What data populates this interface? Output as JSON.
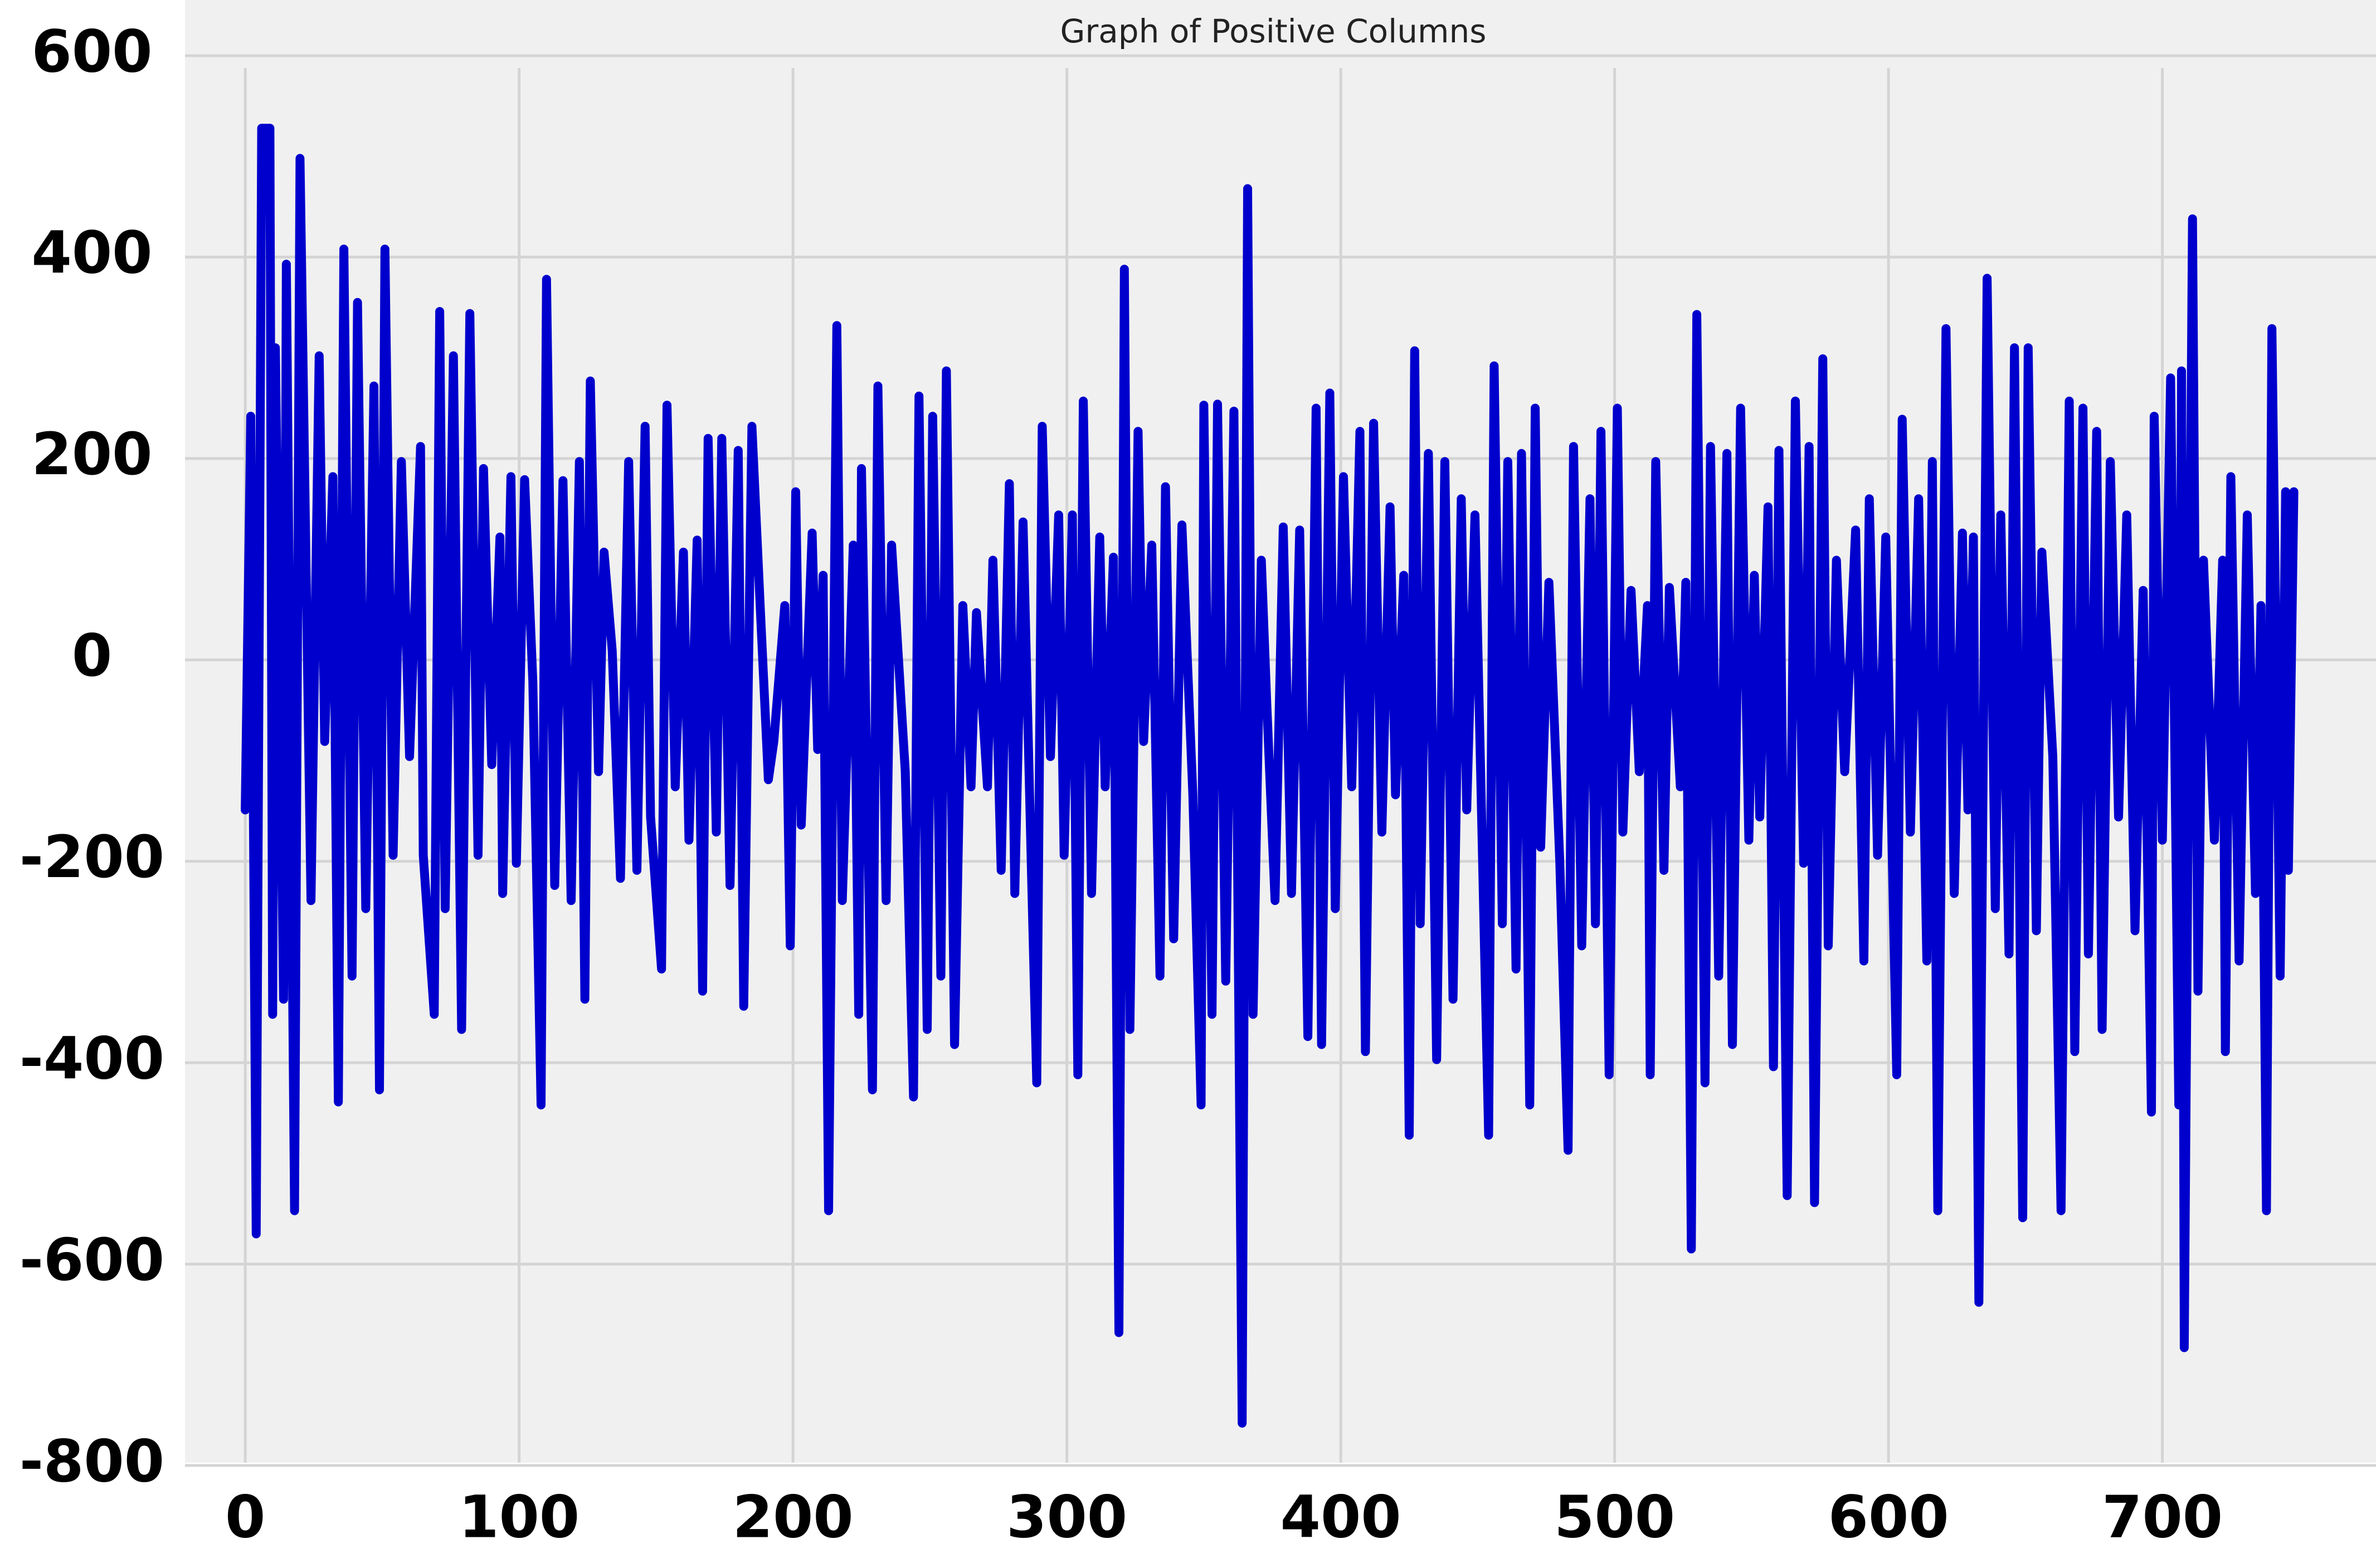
{
  "chart_data": {
    "type": "line",
    "title": "Graph of Positive Columns",
    "x": [
      0,
      2,
      4,
      6,
      9,
      10,
      11,
      14,
      15,
      18,
      20,
      24,
      27,
      29,
      32,
      34,
      36,
      39,
      41,
      44,
      47,
      49,
      51,
      54,
      57,
      60,
      64,
      65,
      69,
      71,
      73,
      76,
      79,
      82,
      85,
      87,
      90,
      93,
      94,
      97,
      99,
      102,
      105,
      108,
      110,
      113,
      116,
      119,
      122,
      124,
      126,
      129,
      131,
      134,
      137,
      140,
      143,
      146,
      148,
      152,
      154,
      157,
      160,
      162,
      165,
      167,
      169,
      172,
      174,
      177,
      180,
      182,
      185,
      188,
      191,
      193,
      197,
      199,
      201,
      203,
      207,
      209,
      211,
      213,
      216,
      218,
      222,
      224,
      225,
      229,
      231,
      234,
      236,
      241,
      244,
      246,
      249,
      251,
      254,
      256,
      259,
      262,
      265,
      267,
      271,
      273,
      276,
      279,
      281,
      284,
      287,
      289,
      291,
      294,
      297,
      299,
      302,
      304,
      306,
      309,
      312,
      314,
      317,
      319,
      321,
      323,
      326,
      328,
      331,
      334,
      336,
      339,
      342,
      346,
      349,
      350,
      353,
      355,
      358,
      361,
      364,
      366,
      368,
      371,
      373,
      376,
      379,
      382,
      385,
      388,
      391,
      393,
      396,
      398,
      401,
      404,
      407,
      409,
      412,
      415,
      418,
      420,
      423,
      425,
      427,
      429,
      432,
      435,
      438,
      441,
      444,
      446,
      449,
      454,
      456,
      459,
      461,
      464,
      466,
      469,
      471,
      473,
      476,
      480,
      483,
      485,
      488,
      491,
      493,
      495,
      498,
      501,
      503,
      506,
      509,
      512,
      513,
      515,
      518,
      520,
      524,
      526,
      528,
      530,
      533,
      535,
      538,
      541,
      543,
      546,
      549,
      551,
      553,
      556,
      558,
      560,
      563,
      566,
      569,
      571,
      573,
      576,
      578,
      581,
      584,
      588,
      591,
      593,
      596,
      599,
      603,
      605,
      608,
      611,
      614,
      616,
      618,
      621,
      624,
      627,
      629,
      631,
      633,
      636,
      639,
      641,
      644,
      646,
      649,
      651,
      654,
      656,
      660,
      663,
      666,
      668,
      671,
      673,
      676,
      678,
      681,
      684,
      687,
      690,
      693,
      696,
      697,
      700,
      703,
      706,
      707,
      708,
      711,
      713,
      715,
      719,
      722,
      723,
      725,
      728,
      731,
      734,
      736,
      738,
      740,
      743,
      745,
      746,
      748
    ],
    "series": [
      {
        "name": "Positive Columns",
        "color": "#0000cd",
        "values": [
          -149,
          242,
          -570,
          528,
          528,
          -352,
          310,
          -337,
          393,
          -547,
          498,
          -239,
          302,
          -81,
          182,
          -439,
          408,
          -314,
          355,
          -247,
          272,
          -427,
          408,
          -194,
          197,
          -96,
          212,
          -194,
          -352,
          346,
          -247,
          302,
          -367,
          344,
          -194,
          190,
          -104,
          122,
          -232,
          182,
          -202,
          179,
          -21,
          -442,
          378,
          -224,
          178,
          -239,
          197,
          -337,
          277,
          -111,
          107,
          9,
          -217,
          197,
          -209,
          232,
          -156,
          -307,
          253,
          -126,
          107,
          -179,
          119,
          -329,
          220,
          -171,
          220,
          -224,
          208,
          -344,
          232,
          54,
          -119,
          -81,
          54,
          -284,
          167,
          -164,
          126,
          -89,
          84,
          -547,
          332,
          -239,
          114,
          -352,
          190,
          -427,
          272,
          -239,
          114,
          -111,
          -434,
          262,
          -367,
          242,
          -314,
          287,
          -382,
          54,
          -126,
          47,
          -126,
          99,
          -209,
          175,
          -232,
          137,
          -202,
          -420,
          232,
          -96,
          144,
          -194,
          144,
          -412,
          257,
          -232,
          122,
          -126,
          102,
          -668,
          388,
          -367,
          227,
          -81,
          114,
          -314,
          172,
          -277,
          134,
          -134,
          -442,
          253,
          -352,
          254,
          -319,
          247,
          -758,
          468,
          -352,
          99,
          -44,
          -239,
          132,
          -232,
          129,
          -374,
          250,
          -382,
          265,
          -247,
          182,
          -126,
          227,
          -389,
          235,
          -171,
          152,
          -134,
          84,
          -472,
          307,
          -262,
          205,
          -397,
          197,
          -337,
          160,
          -149,
          144,
          -472,
          292,
          -262,
          197,
          -307,
          205,
          -442,
          250,
          -186,
          77,
          -202,
          -487,
          212,
          -284,
          160,
          -262,
          227,
          -412,
          250,
          -171,
          69,
          -111,
          54,
          -412,
          197,
          -209,
          72,
          -126,
          77,
          -585,
          343,
          -420,
          212,
          -314,
          205,
          -382,
          250,
          -179,
          84,
          -156,
          152,
          -404,
          208,
          -532,
          257,
          -202,
          212,
          -539,
          299,
          -284,
          99,
          -111,
          129,
          -299,
          160,
          -194,
          122,
          -412,
          239,
          -171,
          160,
          -299,
          197,
          -547,
          329,
          -232,
          126,
          -149,
          122,
          -638,
          379,
          -247,
          144,
          -292,
          310,
          -554,
          310,
          -269,
          107,
          -96,
          -547,
          257,
          -389,
          250,
          -292,
          227,
          -367,
          197,
          -156,
          144,
          -269,
          69,
          -449,
          242,
          -179,
          280,
          -442,
          287,
          -683,
          438,
          -329,
          99,
          -179,
          99,
          -389,
          182,
          -299,
          144,
          -232,
          54,
          -547,
          329,
          -314,
          167,
          -209,
          167
        ]
      }
    ],
    "xlim": [
      -22,
      778
    ],
    "ylim": [
      -800,
      600
    ],
    "xticks": [
      0,
      100,
      200,
      300,
      400,
      500,
      600,
      700
    ],
    "yticks": [
      600,
      400,
      200,
      0,
      -200,
      -400,
      -600,
      -800
    ],
    "grid": true
  }
}
